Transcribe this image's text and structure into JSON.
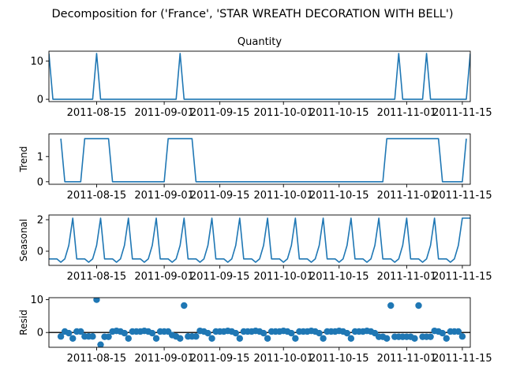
{
  "figure": {
    "suptitle": "Decomposition for ('France', 'STAR WREATH DECORATION WITH BELL')"
  },
  "colors": {
    "line": "#1f77b4",
    "axis": "#000000",
    "background": "#ffffff"
  },
  "chart_data": [
    {
      "type": "line",
      "title": "Quantity",
      "ylabel": "",
      "ylim": [
        -0.6,
        12.6
      ],
      "yticks": [
        0,
        10
      ],
      "x_start": "2011-08-03",
      "x_end": "2011-11-17",
      "xticks": [
        "2011-08-15",
        "2011-09-01",
        "2011-09-15",
        "2011-10-01",
        "2011-10-15",
        "2011-11-01",
        "2011-11-15"
      ],
      "points": [
        [
          "2011-08-03",
          12
        ],
        [
          "2011-08-04",
          0
        ],
        [
          "2011-08-14",
          0
        ],
        [
          "2011-08-15",
          12
        ],
        [
          "2011-08-16",
          0
        ],
        [
          "2011-09-04",
          0
        ],
        [
          "2011-09-05",
          12
        ],
        [
          "2011-09-06",
          0
        ],
        [
          "2011-10-29",
          0
        ],
        [
          "2011-10-30",
          12
        ],
        [
          "2011-10-31",
          0
        ],
        [
          "2011-11-05",
          0
        ],
        [
          "2011-11-06",
          12
        ],
        [
          "2011-11-07",
          0
        ],
        [
          "2011-11-16",
          0
        ],
        [
          "2011-11-17",
          12
        ]
      ]
    },
    {
      "type": "line",
      "title": "",
      "ylabel": "Trend",
      "ylim": [
        -0.1,
        1.9
      ],
      "yticks": [
        0,
        1
      ],
      "x_start": "2011-08-03",
      "x_end": "2011-11-17",
      "xticks": [
        "2011-08-15",
        "2011-09-01",
        "2011-09-15",
        "2011-10-01",
        "2011-10-15",
        "2011-11-01",
        "2011-11-15"
      ],
      "points": [
        [
          "2011-08-06",
          1.71
        ],
        [
          "2011-08-07",
          0
        ],
        [
          "2011-08-11",
          0
        ],
        [
          "2011-08-12",
          1.71
        ],
        [
          "2011-08-18",
          1.71
        ],
        [
          "2011-08-19",
          0
        ],
        [
          "2011-09-01",
          0
        ],
        [
          "2011-09-02",
          1.71
        ],
        [
          "2011-09-08",
          1.71
        ],
        [
          "2011-09-09",
          0
        ],
        [
          "2011-10-26",
          0
        ],
        [
          "2011-10-27",
          1.71
        ],
        [
          "2011-11-09",
          1.71
        ],
        [
          "2011-11-10",
          0
        ],
        [
          "2011-11-15",
          0
        ],
        [
          "2011-11-16",
          1.71
        ]
      ]
    },
    {
      "type": "line",
      "title": "",
      "ylabel": "Seasonal",
      "ylim": [
        -0.9,
        2.3
      ],
      "yticks": [
        0,
        2
      ],
      "x_start": "2011-08-03",
      "x_end": "2011-11-17",
      "xticks": [
        "2011-08-15",
        "2011-09-01",
        "2011-09-15",
        "2011-10-01",
        "2011-10-15",
        "2011-11-01",
        "2011-11-15"
      ],
      "first_date": "2011-08-03",
      "pattern": [
        -0.49,
        -0.49,
        -0.49,
        -0.7,
        -0.49,
        0.37,
        2.1
      ],
      "repeat_count": 15,
      "extra_points": [
        [
          "2011-11-17",
          2.1
        ]
      ]
    },
    {
      "type": "scatter",
      "title": "",
      "ylabel": "Resid",
      "ylim": [
        -4.5,
        10.6
      ],
      "yticks": [
        0,
        10
      ],
      "zero_line": true,
      "x_start": "2011-08-03",
      "x_end": "2011-11-17",
      "xticks": [
        "2011-08-15",
        "2011-09-01",
        "2011-09-15",
        "2011-10-01",
        "2011-10-15",
        "2011-11-01",
        "2011-11-15"
      ],
      "first_date": "2011-08-06",
      "values": [
        -1.2,
        0.3,
        -0.2,
        -1.8,
        0.3,
        0.3,
        -1.2,
        -1.2,
        -1.2,
        10.0,
        -3.7,
        -1.3,
        -1.3,
        0.3,
        0.5,
        0.3,
        -0.2,
        -1.8,
        0.3,
        0.3,
        0.3,
        0.5,
        0.3,
        -0.2,
        -1.8,
        0.3,
        0.3,
        0.3,
        -0.8,
        -1.2,
        -1.8,
        8.2,
        -1.2,
        -1.2,
        -1.2,
        0.5,
        0.3,
        -0.2,
        -1.8,
        0.3,
        0.3,
        0.3,
        0.5,
        0.3,
        -0.2,
        -1.8,
        0.3,
        0.3,
        0.3,
        0.5,
        0.3,
        -0.2,
        -1.8,
        0.3,
        0.3,
        0.3,
        0.5,
        0.3,
        -0.2,
        -1.8,
        0.3,
        0.3,
        0.3,
        0.5,
        0.3,
        -0.2,
        -1.8,
        0.3,
        0.3,
        0.3,
        0.5,
        0.3,
        -0.2,
        -1.8,
        0.3,
        0.3,
        0.3,
        0.5,
        0.3,
        -0.2,
        -1.3,
        -1.3,
        -1.8,
        8.2,
        -1.3,
        -1.3,
        -1.3,
        -1.3,
        -1.3,
        -1.8,
        8.2,
        -1.3,
        -1.3,
        -1.3,
        0.5,
        0.3,
        -0.2,
        -1.8,
        0.3,
        0.3,
        0.3,
        -1.2
      ]
    }
  ]
}
